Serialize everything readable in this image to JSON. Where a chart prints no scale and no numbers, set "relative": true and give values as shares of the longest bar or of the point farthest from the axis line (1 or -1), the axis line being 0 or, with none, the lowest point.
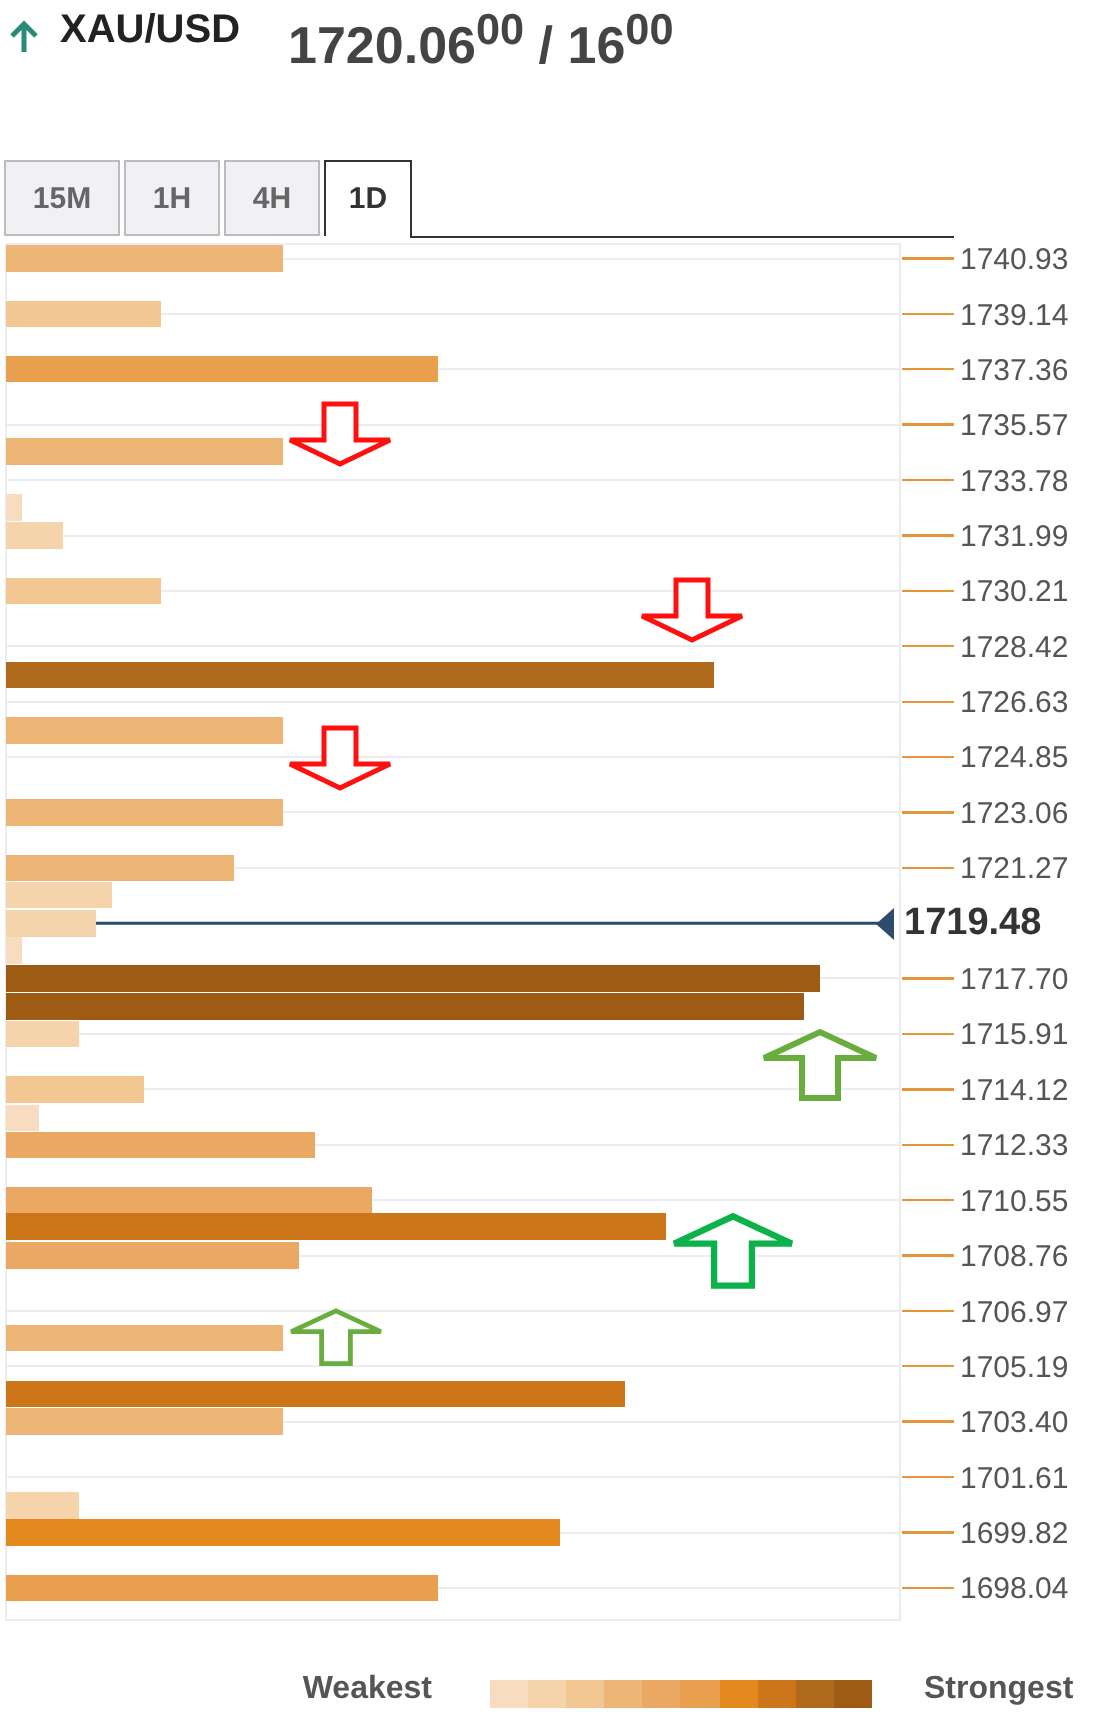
{
  "chart_data": {
    "type": "bar",
    "orientation": "horizontal",
    "relative": true,
    "title": "XAU/USD",
    "subtitle": "1720.06$^{00}$ / 16$^{00}$",
    "annotations": [
      "15M",
      "1H",
      "4H",
      "1D",
      "Weakest",
      "Strongest"
    ],
    "x": [
      1740.93,
      1739.14,
      1737.36,
      1734.7,
      1732.9,
      1731.99,
      1730.21,
      1727.5,
      1725.7,
      1723.06,
      1721.27,
      1720.4,
      1719.48,
      1718.6,
      1717.7,
      1716.8,
      1715.91,
      1714.12,
      1713.2,
      1712.33,
      1710.55,
      1709.7,
      1708.76,
      1706.1,
      1704.3,
      1703.4,
      1700.7,
      1699.82,
      1698.04
    ],
    "values": [
      0.34,
      0.19,
      0.53,
      0.34,
      0.02,
      0.07,
      0.19,
      0.87,
      0.34,
      0.34,
      0.28,
      0.13,
      0.11,
      0.02,
      1,
      0.98,
      0.09,
      0.17,
      0.04,
      0.38,
      0.45,
      0.81,
      0.36,
      0.34,
      0.76,
      0.34,
      0.09,
      0.68,
      0.53
    ],
    "colors": [
      "#edb677",
      "#f2c792",
      "#e8a04e",
      "#edb677",
      "#f7dcbf",
      "#f5d3ab",
      "#f2c792",
      "#b06a1c",
      "#edb677",
      "#edb677",
      "#edb677",
      "#f5d3ab",
      "#f5d3ab",
      "#f7dcbf",
      "#9e5b14",
      "#9e5b14",
      "#f5d3ab",
      "#f2c792",
      "#f7dcbf",
      "#eba862",
      "#eba862",
      "#cc7619",
      "#eba862",
      "#edb677",
      "#cc7619",
      "#edb677",
      "#f5d3ab",
      "#e3891e",
      "#e8a04e"
    ],
    "ylim": [
      1697.0,
      1741.4
    ],
    "yticks": [
      1740.93,
      1739.14,
      1737.36,
      1735.57,
      1733.78,
      1731.99,
      1730.21,
      1728.42,
      1726.63,
      1724.85,
      1723.06,
      1721.27,
      {
        "value": 1717.7,
        "label": "1717.70"
      },
      1715.91,
      1714.12,
      1712.33,
      1710.55,
      1708.76,
      1706.97,
      1705.19,
      {
        "value": 1703.4,
        "label": "1703.40"
      },
      1701.61,
      1699.82,
      1698.04
    ],
    "grid": "y",
    "ref_lines": [
      {
        "axis": "y",
        "value": 1719.48,
        "label": "1719.48",
        "color": "#2e4a6e"
      }
    ]
  }
}
